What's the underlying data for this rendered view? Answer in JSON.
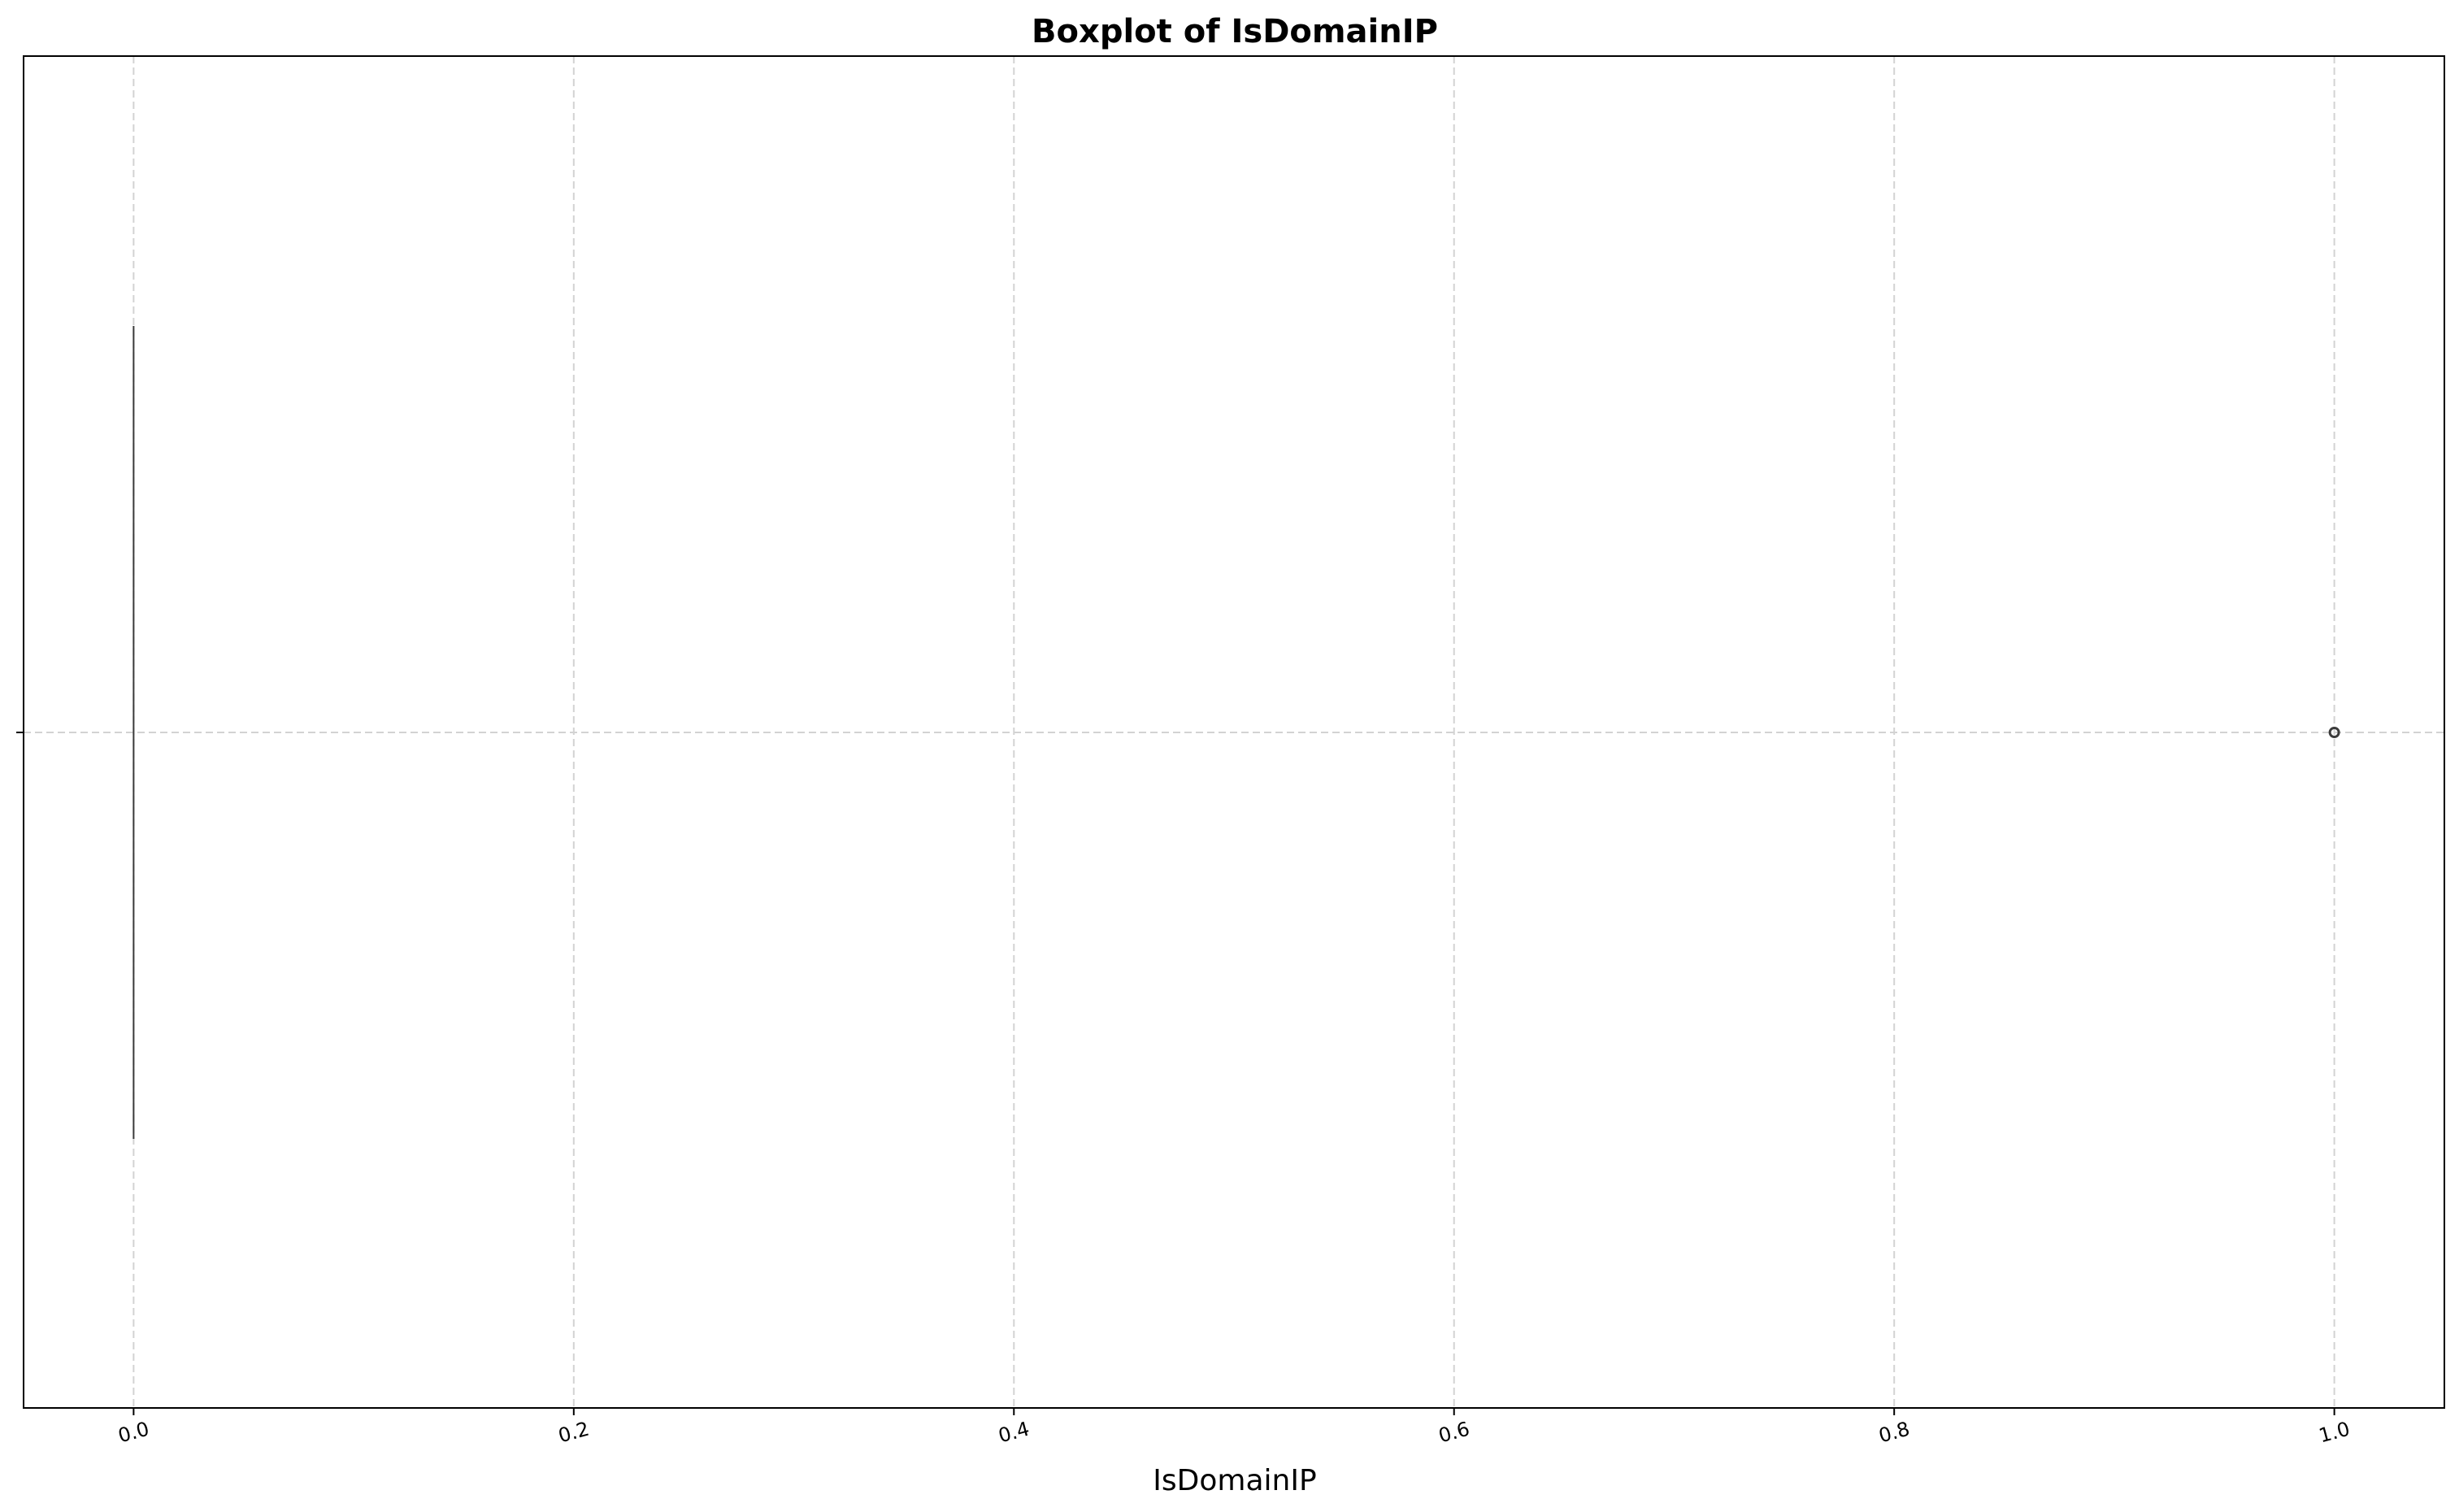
{
  "chart_data": {
    "type": "boxplot",
    "title": "Boxplot of IsDomainIP",
    "xlabel": "IsDomainIP",
    "ylabel": "",
    "orientation": "horizontal",
    "xlim": [
      -0.05,
      1.05
    ],
    "xticks": [
      0.0,
      0.2,
      0.4,
      0.6,
      0.8,
      1.0
    ],
    "xtick_labels": [
      "0.0",
      "0.2",
      "0.4",
      "0.6",
      "0.8",
      "1.0"
    ],
    "grid": true,
    "box": {
      "min": 0,
      "q1": 0,
      "median": 0,
      "q3": 0,
      "max": 0
    },
    "outliers": [
      1.0
    ]
  }
}
